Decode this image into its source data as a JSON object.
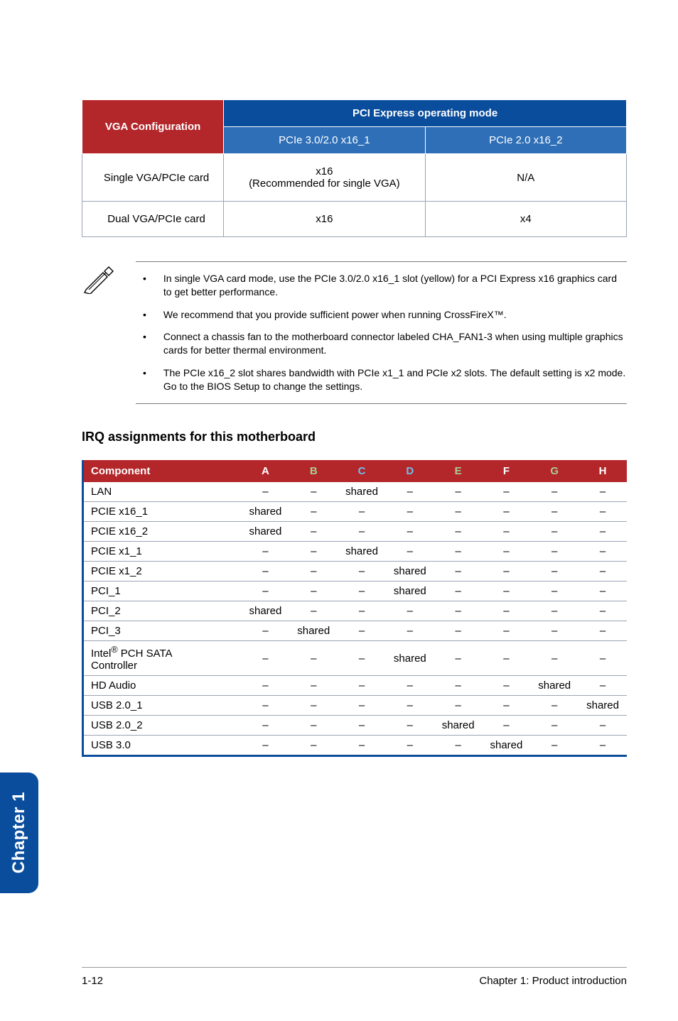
{
  "vga_table": {
    "header_config": "VGA Configuration",
    "header_mode": "PCI Express operating mode",
    "sub_pcie1": "PCIe 3.0/2.0 x16_1",
    "sub_pcie2": "PCIe 2.0 x16_2",
    "colors": {
      "header_bg": "#0a4d9c",
      "config_bg": "#b3262a",
      "sub_bg": "#2e6fb7",
      "cell_border": "#9ba3b5"
    },
    "rows": [
      {
        "label": "Single VGA/PCIe card",
        "c1_line1": "x16",
        "c1_line2": "(Recommended for single VGA)",
        "c2": "N/A"
      },
      {
        "label": "Dual VGA/PCIe card",
        "c1_line1": "x16",
        "c1_line2": "",
        "c2": "x4"
      }
    ]
  },
  "notes": [
    "In single VGA card mode, use the PCIe 3.0/2.0 x16_1 slot (yellow) for a PCI Express x16 graphics card to get better performance.",
    "We recommend that you provide sufficient power when running CrossFireX™.",
    "Connect a chassis fan to the motherboard connector labeled CHA_FAN1-3 when using multiple graphics cards for better thermal environment.",
    "The PCIe x16_2 slot shares bandwidth with PCIe x1_1 and PCIe x2 slots. The default setting is x2 mode. Go to the BIOS Setup to change the settings."
  ],
  "irq": {
    "heading": "IRQ assignments for this motherboard",
    "columns": [
      "Component",
      "A",
      "B",
      "C",
      "D",
      "E",
      "F",
      "G",
      "H"
    ],
    "col_colors": {
      "A": "#fff",
      "B": "#a7d08e",
      "C": "#4aa3df",
      "D": "#4aa3df",
      "E": "#a7d08e",
      "F": "#fff",
      "G": "#a7d08e",
      "H": "#fff"
    },
    "rows": [
      {
        "name": "LAN",
        "v": [
          "–",
          "–",
          "shared",
          "–",
          "–",
          "–",
          "–",
          "–"
        ]
      },
      {
        "name": "PCIE x16_1",
        "v": [
          "shared",
          "–",
          "–",
          "–",
          "–",
          "–",
          "–",
          "–"
        ]
      },
      {
        "name": "PCIE x16_2",
        "v": [
          "shared",
          "–",
          "–",
          "–",
          "–",
          "–",
          "–",
          "–"
        ]
      },
      {
        "name": "PCIE x1_1",
        "v": [
          "–",
          "–",
          "shared",
          "–",
          "–",
          "–",
          "–",
          "–"
        ]
      },
      {
        "name": "PCIE x1_2",
        "v": [
          "–",
          "–",
          "–",
          "shared",
          "–",
          "–",
          "–",
          "–"
        ]
      },
      {
        "name": "PCI_1",
        "v": [
          "–",
          "–",
          "–",
          "shared",
          "–",
          "–",
          "–",
          "–"
        ]
      },
      {
        "name": "PCI_2",
        "v": [
          "shared",
          "–",
          "–",
          "–",
          "–",
          "–",
          "–",
          "–"
        ]
      },
      {
        "name": "PCI_3",
        "v": [
          "–",
          "shared",
          "–",
          "–",
          "–",
          "–",
          "–",
          "–"
        ]
      },
      {
        "name": "Intel® PCH SATA Controller",
        "v": [
          "–",
          "–",
          "–",
          "shared",
          "–",
          "–",
          "–",
          "–"
        ]
      },
      {
        "name": "HD Audio",
        "v": [
          "–",
          "–",
          "–",
          "–",
          "–",
          "–",
          "shared",
          "–"
        ]
      },
      {
        "name": "USB 2.0_1",
        "v": [
          "–",
          "–",
          "–",
          "–",
          "–",
          "–",
          "–",
          "shared"
        ]
      },
      {
        "name": "USB 2.0_2",
        "v": [
          "–",
          "–",
          "–",
          "–",
          "shared",
          "–",
          "–",
          "–"
        ]
      },
      {
        "name": "USB 3.0",
        "v": [
          "–",
          "–",
          "–",
          "–",
          "–",
          "shared",
          "–",
          "–"
        ]
      }
    ]
  },
  "tab": "Chapter 1",
  "footer": {
    "left": "1-12",
    "right": "Chapter 1: Product introduction"
  }
}
